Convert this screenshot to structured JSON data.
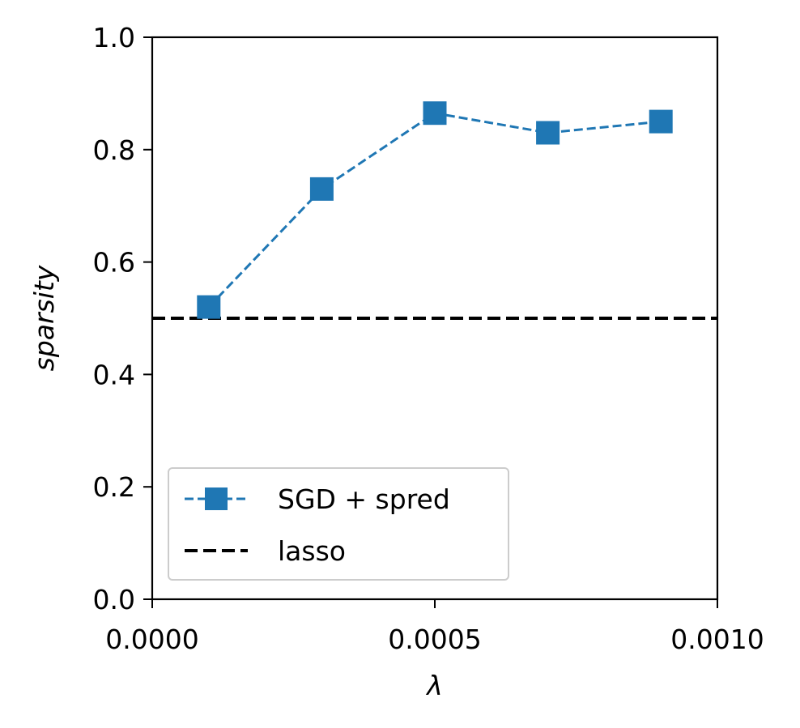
{
  "chart_data": {
    "type": "line",
    "xlabel": "λ",
    "ylabel": "sparsity",
    "xlim": [
      0.0,
      0.001
    ],
    "ylim": [
      0.0,
      1.0
    ],
    "xticks": [
      0.0,
      0.0005,
      0.001
    ],
    "xtick_labels": [
      "0.0000",
      "0.0005",
      "0.0010"
    ],
    "yticks": [
      0.0,
      0.2,
      0.4,
      0.6,
      0.8,
      1.0
    ],
    "ytick_labels": [
      "0.0",
      "0.2",
      "0.4",
      "0.6",
      "0.8",
      "1.0"
    ],
    "grid": false,
    "legend_position": "lower-left",
    "series": [
      {
        "name": "SGD + spred",
        "color": "#1f77b4",
        "line_style": "dashed",
        "marker": "square",
        "x": [
          0.0001,
          0.0003,
          0.0005,
          0.0007,
          0.0009
        ],
        "y": [
          0.52,
          0.73,
          0.865,
          0.83,
          0.85
        ]
      },
      {
        "name": "lasso",
        "color": "#000000",
        "line_style": "dashed",
        "marker": "none",
        "type": "hline",
        "y": 0.5
      }
    ]
  }
}
